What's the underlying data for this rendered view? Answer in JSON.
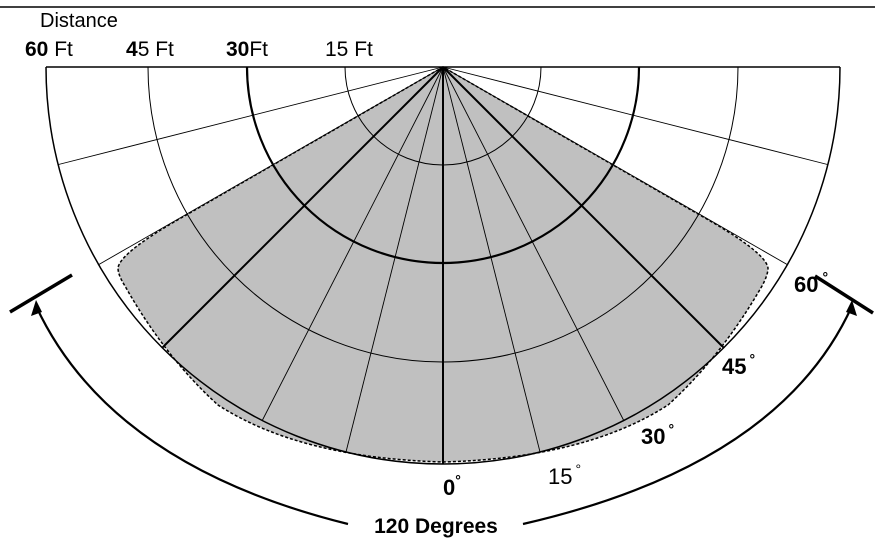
{
  "header": {
    "distance_label": "Distance",
    "distance_60_number": "60",
    "distance_60_unit": " Ft",
    "distance_45_number": "4",
    "distance_45_rest": "5 Ft",
    "distance_30_number": "30",
    "distance_30_unit": "Ft",
    "distance_15_label": "15 Ft"
  },
  "angles": {
    "a0": "0",
    "a15": "15",
    "a30": "30",
    "a45": "45",
    "a60": "60",
    "degree_symbol": "°"
  },
  "span_label": "120 Degrees",
  "colors": {
    "coverage_fill": "#c0c0c0",
    "line": "#000000",
    "background": "#ffffff"
  }
}
